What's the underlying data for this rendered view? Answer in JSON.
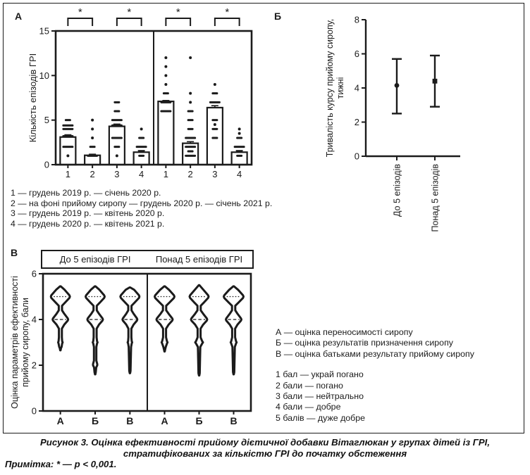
{
  "colors": {
    "ink": "#1b1b1b",
    "background": "#ffffff"
  },
  "figure": {
    "panel_a_label": "А",
    "panel_b_label": "Б",
    "panel_v_label": "В"
  },
  "chart_data": [
    {
      "id": "panel-a",
      "type": "bar",
      "ylabel": "Кількість епізодів ГРІ",
      "ylim": [
        0,
        15
      ],
      "yticks": [
        0,
        5,
        10,
        15
      ],
      "sig_label": "*",
      "grid": false,
      "groups": [
        {
          "categories": [
            "1",
            "2",
            "3",
            "4"
          ],
          "bars": [
            3.1,
            1.05,
            4.3,
            1.4
          ],
          "sem": [
            0.25,
            0.12,
            0.25,
            0.18
          ],
          "sig_pairs": [
            [
              0,
              1
            ],
            [
              2,
              3
            ]
          ],
          "scatter": [
            [
              [
                5,
                2
              ],
              [
                4.4,
                3
              ],
              [
                4,
                3
              ],
              [
                3.2,
                3
              ],
              [
                2,
                3
              ],
              [
                1,
                1
              ]
            ],
            [
              [
                5,
                1
              ],
              [
                4,
                1
              ],
              [
                3,
                1
              ],
              [
                2,
                2
              ],
              [
                1,
                3
              ]
            ],
            [
              [
                7,
                2
              ],
              [
                6,
                2
              ],
              [
                5,
                3
              ],
              [
                4.4,
                3
              ],
              [
                3,
                3
              ],
              [
                2,
                2
              ],
              [
                1,
                1
              ]
            ],
            [
              [
                4,
                1
              ],
              [
                3,
                2
              ],
              [
                2,
                3
              ],
              [
                1.5,
                2
              ],
              [
                1,
                2
              ]
            ]
          ]
        },
        {
          "categories": [
            "1",
            "2",
            "3",
            "4"
          ],
          "bars": [
            7.1,
            2.4,
            6.4,
            1.4
          ],
          "sem": [
            0.1,
            0.18,
            0.22,
            0.18
          ],
          "sig_pairs": [
            [
              0,
              1
            ],
            [
              2,
              3
            ]
          ],
          "scatter": [
            [
              [
                12,
                1
              ],
              [
                11,
                1
              ],
              [
                10,
                1
              ],
              [
                9,
                1
              ],
              [
                8,
                2
              ],
              [
                7,
                3
              ],
              [
                6,
                3
              ]
            ],
            [
              [
                12,
                1
              ],
              [
                8,
                1
              ],
              [
                7,
                1
              ],
              [
                6,
                2
              ],
              [
                5,
                2
              ],
              [
                4,
                2
              ],
              [
                3,
                3
              ],
              [
                2,
                3
              ],
              [
                1.5,
                2
              ],
              [
                1,
                3
              ]
            ],
            [
              [
                9,
                1
              ],
              [
                8,
                2
              ],
              [
                7,
                3
              ],
              [
                5,
                2
              ],
              [
                4.5,
                1
              ],
              [
                4,
                2
              ],
              [
                3,
                2
              ]
            ],
            [
              [
                4,
                1
              ],
              [
                3.5,
                1
              ],
              [
                3,
                2
              ],
              [
                2,
                3
              ],
              [
                1.5,
                2
              ],
              [
                1,
                2
              ]
            ]
          ]
        }
      ]
    },
    {
      "id": "panel-b",
      "type": "errorbar",
      "ylabel_lines": [
        "Тривалість курсу прийому сиропу,",
        "тижні"
      ],
      "ylim": [
        0,
        8
      ],
      "yticks": [
        0,
        2,
        4,
        6,
        8
      ],
      "categories": [
        "До 5 епізодів",
        "Понад 5 епізодів"
      ],
      "mean": [
        4.15,
        4.4
      ],
      "lo": [
        2.5,
        2.9
      ],
      "hi": [
        5.7,
        5.9
      ],
      "markers": [
        "circle",
        "square"
      ]
    },
    {
      "id": "panel-v",
      "type": "violin",
      "ylabel_lines": [
        "Оцінка параметрів ефективності",
        "прийому сиропу, бали"
      ],
      "ylim": [
        0,
        6
      ],
      "yticks": [
        0,
        2,
        4,
        6
      ],
      "group_headers": [
        "До 5 епізодів ГРІ",
        "Понад 5 епізодів ГРІ"
      ],
      "ref_lines": [
        5,
        4
      ],
      "groups": [
        {
          "categories": [
            "А",
            "Б",
            "В"
          ],
          "violins": [
            {
              "top": 5.45,
              "l5": 13.5,
              "l4": 11,
              "b3": 3.2,
              "tail": 2.65
            },
            {
              "top": 5.45,
              "l5": 13.5,
              "l4": 11,
              "b3": 3.4,
              "b2": 3.0,
              "tail": 1.6
            },
            {
              "top": 5.4,
              "l5": 13.5,
              "l4": 10.5,
              "b3": 3.2,
              "tail": 1.65
            }
          ]
        },
        {
          "categories": [
            "А",
            "Б",
            "В"
          ],
          "violins": [
            {
              "top": 5.45,
              "l5": 14,
              "l4": 11.5,
              "b3": 4.2,
              "tail": 2.6
            },
            {
              "top": 5.5,
              "l5": 13.5,
              "l4": 11.5,
              "b3": 5.5,
              "tail": 1.55
            },
            {
              "top": 5.45,
              "l5": 14,
              "l4": 11,
              "b3": 4.2,
              "tail": 1.6
            }
          ]
        }
      ]
    }
  ],
  "legend_a": {
    "lines": [
      "1 — грудень 2019 р. — січень 2020 р.",
      "2 — на фоні прийому сиропу — грудень 2020 р. — січень 2021 р.",
      "3 — грудень 2019 р. — квітень 2020 р.",
      "4 — грудень 2020 р. — квітень 2021 р."
    ]
  },
  "legend_v": {
    "param_lines": [
      "А — оцінка переносимості сиропу",
      "Б — оцінка результатів призначення сиропу",
      "В — оцінка батьками результату прийому сиропу"
    ],
    "score_lines": [
      "1 бал — украй погано",
      "2 бали — погано",
      "3 бали — нейтрально",
      "4 бали — добре",
      "5 балів — дуже добре"
    ]
  },
  "caption": {
    "line1": "Рисунок 3. Оцінка ефективності прийому дієтичної добавки Вітаглюкан у групах дітей із ГРІ,",
    "line2": "стратифікованих за кількістю ГРІ до початку обстеження"
  },
  "note": {
    "text": "Примітка: * — p < 0,001."
  }
}
